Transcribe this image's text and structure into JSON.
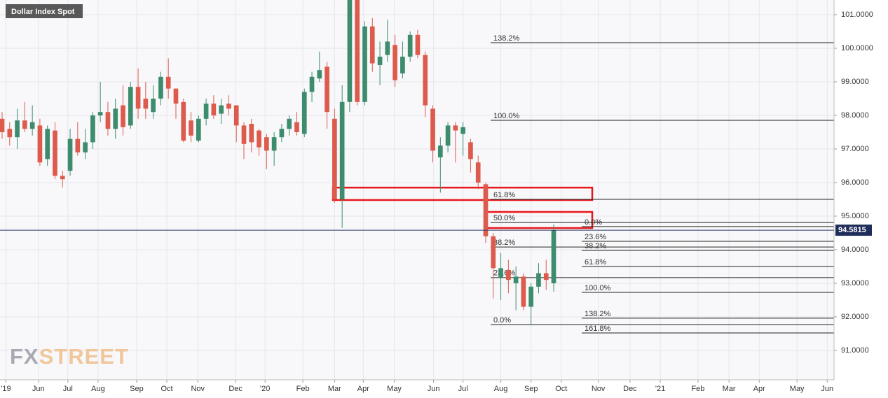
{
  "chart_data": {
    "type": "candlestick",
    "title": "Dollar Index Spot",
    "watermark": {
      "prefix": "FX",
      "suffix": "STREET"
    },
    "up_color": "#3d8c6e",
    "down_color": "#dd5b4d",
    "open": [
      97.9,
      97.6,
      97.35,
      97.85,
      97.6,
      97.7,
      96.7,
      97.55,
      96.2,
      96.35,
      97.3,
      96.9,
      97.2,
      98.0,
      98.1,
      97.6,
      98.3,
      97.7,
      98.85,
      98.5,
      98.1,
      98.5,
      99.15,
      98.8,
      98.4,
      97.85,
      97.25,
      97.9,
      98.35,
      98.05,
      98.35,
      98.3,
      97.7,
      97.75,
      97.55,
      97.35,
      96.95,
      97.35,
      97.6,
      97.8,
      97.45,
      98.7,
      99.1,
      99.45,
      97.9,
      95.5,
      98.4,
      102.8,
      98.4,
      100.65,
      99.5,
      99.8,
      100.1,
      99.25,
      99.75,
      100.4,
      99.8,
      98.2,
      96.75,
      97.1,
      97.7,
      97.45,
      97.2,
      96.6,
      95.95,
      94.4,
      93.15,
      93.4,
      93.0,
      93.2,
      92.3,
      92.9,
      93.3,
      93.0
    ],
    "high": [
      98.1,
      97.8,
      98.2,
      98.4,
      98.3,
      97.9,
      97.7,
      97.8,
      96.35,
      97.6,
      97.8,
      97.6,
      98.1,
      99.0,
      98.4,
      98.5,
      98.9,
      99.0,
      99.4,
      99.0,
      98.9,
      99.3,
      99.7,
      98.8,
      98.5,
      98.1,
      98.0,
      98.5,
      98.6,
      98.5,
      98.6,
      98.3,
      97.8,
      97.9,
      97.6,
      97.45,
      97.5,
      97.75,
      98.0,
      98.1,
      98.8,
      99.3,
      99.9,
      99.6,
      98.2,
      98.9,
      103.0,
      103.0,
      100.8,
      100.9,
      100.2,
      100.85,
      100.4,
      100.2,
      100.5,
      100.55,
      99.9,
      98.3,
      97.35,
      97.8,
      97.8,
      97.8,
      97.3,
      96.8,
      96.0,
      94.5,
      93.9,
      93.7,
      93.5,
      93.3,
      93.0,
      93.6,
      93.7,
      94.75
    ],
    "low": [
      97.3,
      97.1,
      97.0,
      97.5,
      97.4,
      96.5,
      96.5,
      96.1,
      95.85,
      96.2,
      96.8,
      96.7,
      97.0,
      97.8,
      97.4,
      97.3,
      97.4,
      97.6,
      97.9,
      97.9,
      97.9,
      98.3,
      98.5,
      97.9,
      97.2,
      97.2,
      97.2,
      97.7,
      97.9,
      97.75,
      98.0,
      97.2,
      96.7,
      96.9,
      96.8,
      96.4,
      96.5,
      97.2,
      97.4,
      97.4,
      97.35,
      98.4,
      99.0,
      97.6,
      95.4,
      94.65,
      98.1,
      98.3,
      98.3,
      99.3,
      98.9,
      99.6,
      98.85,
      99.1,
      99.6,
      99.7,
      97.95,
      96.6,
      95.7,
      96.9,
      96.6,
      96.8,
      96.3,
      95.8,
      94.2,
      92.55,
      92.5,
      92.7,
      92.2,
      92.2,
      91.75,
      92.7,
      92.8,
      92.75
    ],
    "close": [
      97.5,
      97.35,
      97.85,
      97.6,
      97.8,
      96.6,
      97.6,
      96.2,
      96.1,
      97.3,
      96.9,
      97.2,
      98.0,
      98.1,
      97.6,
      98.2,
      97.65,
      98.85,
      98.2,
      98.2,
      98.5,
      99.15,
      98.8,
      98.35,
      97.25,
      97.4,
      97.9,
      98.35,
      98.0,
      98.3,
      98.2,
      97.7,
      97.15,
      97.2,
      97.05,
      96.95,
      97.35,
      97.6,
      97.9,
      97.5,
      98.7,
      99.15,
      99.35,
      98.1,
      95.5,
      98.4,
      102.8,
      98.4,
      100.65,
      99.55,
      99.75,
      100.2,
      99.05,
      99.75,
      100.4,
      99.8,
      98.3,
      96.95,
      97.1,
      97.7,
      97.55,
      97.65,
      96.7,
      96.0,
      94.4,
      93.45,
      93.45,
      93.1,
      93.2,
      92.3,
      92.9,
      93.3,
      93.1,
      94.58
    ],
    "last_price": 94.5815,
    "xlim": [
      -0.28,
      110.1
    ],
    "xticks": [
      {
        "value": 0.5,
        "label": "'19"
      },
      {
        "value": 4.8,
        "label": "Jun"
      },
      {
        "value": 8.7,
        "label": "Jul"
      },
      {
        "value": 12.7,
        "label": "Aug"
      },
      {
        "value": 17.8,
        "label": "Sep"
      },
      {
        "value": 21.8,
        "label": "Oct"
      },
      {
        "value": 25.9,
        "label": "Nov"
      },
      {
        "value": 30.9,
        "label": "Dec"
      },
      {
        "value": 34.8,
        "label": "'20"
      },
      {
        "value": 39.8,
        "label": "Feb"
      },
      {
        "value": 44.0,
        "label": "Mar"
      },
      {
        "value": 47.8,
        "label": "Apr"
      },
      {
        "value": 51.9,
        "label": "May"
      },
      {
        "value": 57.1,
        "label": "Jun"
      },
      {
        "value": 61.0,
        "label": "Jul"
      },
      {
        "value": 66.0,
        "label": "Aug"
      },
      {
        "value": 70.0,
        "label": "Sep"
      },
      {
        "value": 74.0,
        "label": "Oct"
      },
      {
        "value": 78.9,
        "label": "Nov"
      },
      {
        "value": 83.1,
        "label": "Dec"
      },
      {
        "value": 87.1,
        "label": "'21"
      },
      {
        "value": 92.1,
        "label": "Feb"
      },
      {
        "value": 96.2,
        "label": "Mar"
      },
      {
        "value": 100.2,
        "label": "Apr"
      },
      {
        "value": 105.2,
        "label": "May"
      },
      {
        "value": 109.2,
        "label": "Jun"
      }
    ],
    "ylim": [
      90.125,
      101.4375
    ],
    "yticks": [
      {
        "value": 91,
        "label": "91.0000"
      },
      {
        "value": 92,
        "label": "92.0000"
      },
      {
        "value": 93,
        "label": "93.0000"
      },
      {
        "value": 94,
        "label": "94.0000"
      },
      {
        "value": 95,
        "label": "95.0000"
      },
      {
        "value": 96,
        "label": "96.0000"
      },
      {
        "value": 97,
        "label": "97.0000"
      },
      {
        "value": 98,
        "label": "98.0000"
      },
      {
        "value": 99,
        "label": "99.0000"
      },
      {
        "value": 100,
        "label": "100.0000"
      },
      {
        "value": 101,
        "label": "101.0000"
      }
    ],
    "grid": true,
    "highlights": [
      {
        "low": 95.48,
        "high": 95.85,
        "color": "#e8161b"
      },
      {
        "low": 94.645,
        "high": 95.125,
        "color": "#e8161b"
      }
    ],
    "fibonacci": [
      {
        "levels": [
          {
            "price": 100.167,
            "label": "138.2%"
          },
          {
            "price": 97.854,
            "label": "100.0%"
          },
          {
            "price": 95.5,
            "label": "61.8%"
          },
          {
            "price": 94.81,
            "label": "50.0%"
          },
          {
            "price": 94.08,
            "label": "38.2%"
          },
          {
            "price": 93.17,
            "label": "23.6%"
          },
          {
            "price": 91.77,
            "label": "0.0%"
          }
        ]
      },
      {
        "levels": [
          {
            "price": 94.69,
            "label": "0.0%"
          },
          {
            "price": 94.25,
            "label": "23.6%"
          },
          {
            "price": 93.98,
            "label": "38.2%"
          },
          {
            "price": 93.5,
            "label": "61.8%"
          },
          {
            "price": 92.73,
            "label": "100.0%"
          },
          {
            "price": 91.96,
            "label": "138.2%"
          },
          {
            "price": 91.52,
            "label": "161.8%"
          }
        ]
      }
    ]
  }
}
